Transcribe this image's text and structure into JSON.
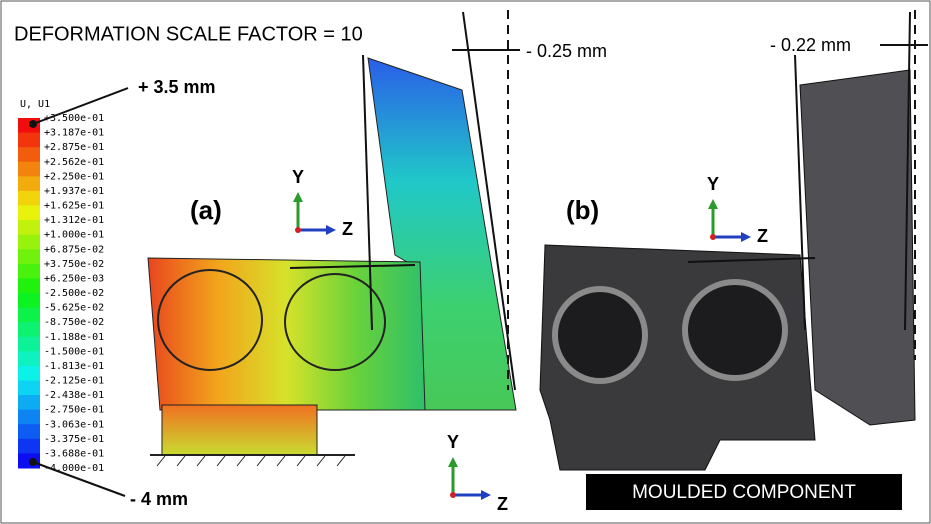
{
  "header": {
    "title": "DEFORMATION SCALE FACTOR = 10"
  },
  "legend": {
    "title": "U, U1",
    "labels": [
      "+3.500e-01",
      "+3.187e-01",
      "+2.875e-01",
      "+2.562e-01",
      "+2.250e-01",
      "+1.937e-01",
      "+1.625e-01",
      "+1.312e-01",
      "+1.000e-01",
      "+6.875e-02",
      "+3.750e-02",
      "+6.250e-03",
      "-2.500e-02",
      "-5.625e-02",
      "-8.750e-02",
      "-1.188e-01",
      "-1.500e-01",
      "-1.813e-01",
      "-2.125e-01",
      "-2.438e-01",
      "-2.750e-01",
      "-3.063e-01",
      "-3.375e-01",
      "-3.688e-01",
      "-4.000e-01"
    ]
  },
  "annotations": {
    "max": "+ 3.5 mm",
    "min": "- 4 mm",
    "tilt_a": "- 0.25 mm",
    "tilt_b": "- 0.22 mm"
  },
  "panels": [
    {
      "label": "(a)"
    },
    {
      "label": "(b)"
    }
  ],
  "triads": [
    {
      "y": "Y",
      "z": "Z"
    },
    {
      "y": "Y",
      "z": "Z"
    },
    {
      "y": "Y",
      "z": "Z"
    }
  ],
  "caption": "MOULDED COMPONENT"
}
